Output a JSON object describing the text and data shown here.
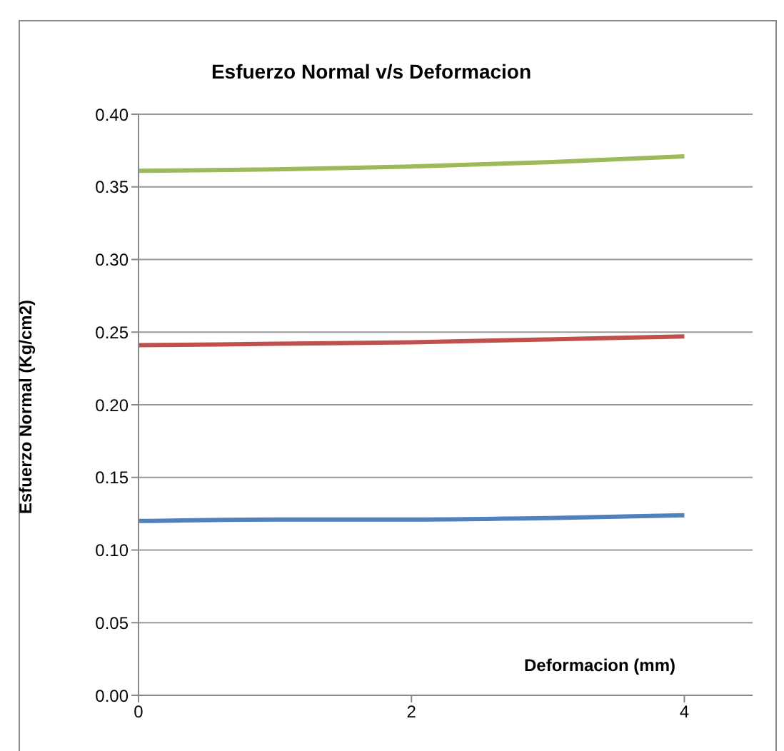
{
  "chart_data": {
    "type": "line",
    "title": "Esfuerzo Normal v/s Deformacion",
    "xlabel": "Deformacion (mm)",
    "ylabel": "Esfuerzo Normal (Kg/cm2)",
    "x": [
      0,
      1,
      2,
      3,
      4
    ],
    "series": [
      {
        "color": "#4f81bd",
        "values": [
          0.12,
          0.121,
          0.121,
          0.122,
          0.124
        ]
      },
      {
        "color": "#c0504d",
        "values": [
          0.241,
          0.242,
          0.243,
          0.245,
          0.247
        ]
      },
      {
        "color": "#9bbb59",
        "values": [
          0.361,
          0.362,
          0.364,
          0.367,
          0.371
        ]
      }
    ],
    "xlim": [
      0,
      4.5
    ],
    "xticks": [
      0,
      2,
      4
    ],
    "ylim": [
      0,
      0.4
    ],
    "yticks": [
      {
        "value": 0,
        "label": "0.00"
      },
      {
        "value": 0.05,
        "label": "0.05"
      },
      {
        "value": 0.1,
        "label": "0.10"
      },
      {
        "value": 0.15,
        "label": "0.15"
      },
      {
        "value": 0.2,
        "label": "0.20"
      },
      {
        "value": 0.25,
        "label": "0.25"
      },
      {
        "value": 0.3,
        "label": "0.30"
      },
      {
        "value": 0.35,
        "label": "0.35"
      },
      {
        "value": 0.4,
        "label": "0.40"
      }
    ],
    "grid": "y",
    "marker": "none",
    "line_style": "solid",
    "legend": false
  }
}
